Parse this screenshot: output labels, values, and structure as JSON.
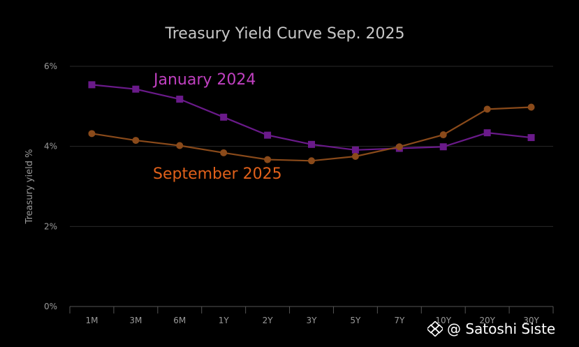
{
  "chart_data": {
    "type": "line",
    "title": "Treasury Yield Curve Sep. 2025",
    "ylabel": "Treasury yield %",
    "xlabel": "",
    "ylim": [
      0,
      6
    ],
    "yticks": [
      "0%",
      "2%",
      "4%",
      "6%"
    ],
    "yticks_values": [
      0,
      2,
      4,
      6
    ],
    "grid": true,
    "categories": [
      "1M",
      "3M",
      "6M",
      "1Y",
      "2Y",
      "3Y",
      "5Y",
      "7Y",
      "10Y",
      "20Y",
      "30Y"
    ],
    "series": [
      {
        "name": "January 2024",
        "color": "#6a1a8a",
        "label_color": "#c040c0",
        "marker": "square",
        "values": [
          5.54,
          5.43,
          5.18,
          4.73,
          4.28,
          4.05,
          3.91,
          3.95,
          3.99,
          4.34,
          4.22
        ]
      },
      {
        "name": "September 2025",
        "color": "#8a4a1a",
        "label_color": "#e0601a",
        "marker": "circle",
        "values": [
          4.32,
          4.15,
          4.02,
          3.84,
          3.67,
          3.64,
          3.75,
          3.99,
          4.29,
          4.93,
          4.98
        ]
      }
    ]
  },
  "watermark": {
    "text": "@ Satoshi Siste",
    "icon": "binance-diamond-icon"
  }
}
